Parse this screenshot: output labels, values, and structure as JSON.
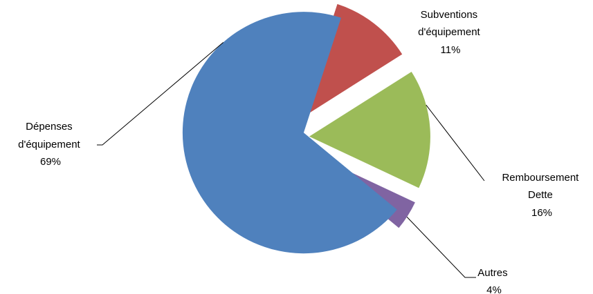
{
  "chart_data": {
    "type": "pie",
    "exploded": true,
    "slices": [
      {
        "name": "Subventions d'équipement",
        "label_lines": [
          "Subventions",
          "d'équipement"
        ],
        "pct_label": "11%",
        "value": 11,
        "color": "#C0504D"
      },
      {
        "name": "Remboursement Dette",
        "label_lines": [
          "Remboursement",
          "Dette"
        ],
        "pct_label": "16%",
        "value": 16,
        "color": "#9BBB59"
      },
      {
        "name": "Autres",
        "label_lines": [
          "Autres"
        ],
        "pct_label": "4%",
        "value": 4,
        "color": "#8064A2"
      },
      {
        "name": "Dépenses d'équipement",
        "label_lines": [
          "Dépenses",
          "d'équipement"
        ],
        "pct_label": "69%",
        "value": 69,
        "color": "#4F81BD"
      }
    ]
  }
}
